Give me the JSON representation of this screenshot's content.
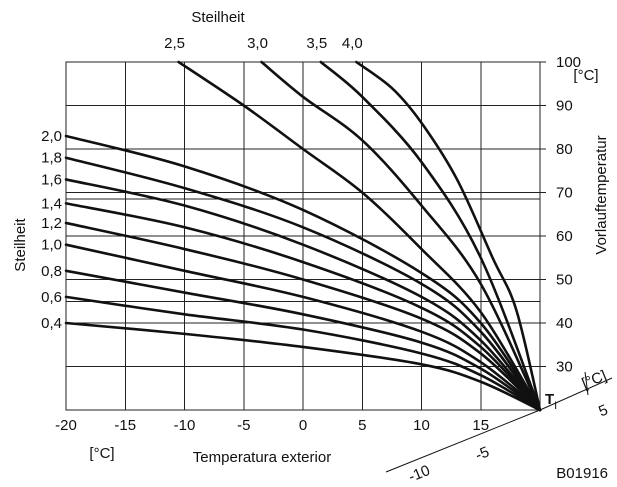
{
  "chart_data": {
    "type": "line",
    "title": "",
    "top_label": "Steilheit",
    "top_ticks": [
      "2,5",
      "3,0",
      "3,5",
      "4,0"
    ],
    "left_label": "Steilheit",
    "left_ticks": [
      "2,0",
      "1,8",
      "1,6",
      "1,4",
      "1,2",
      "1,0",
      "0,8",
      "0,6",
      "0,4"
    ],
    "xlabel": "Temperatura exterior",
    "x_unit": "[°C]",
    "x_ticks": [
      "-20",
      "-15",
      "-10",
      "-5",
      "0",
      "5",
      "10",
      "15"
    ],
    "xlim": [
      -20,
      20
    ],
    "ylabel": "Vorlauftemperatur",
    "y_unit": "[°C]",
    "y_ticks": [
      "100",
      "90",
      "80",
      "70",
      "60",
      "50",
      "40",
      "30"
    ],
    "ylim": [
      20,
      100
    ],
    "room_label": "T",
    "room_label_sub": "I",
    "room_unit": "[°C]",
    "room_ticks": [
      "5",
      "-5",
      "-10"
    ],
    "figure_code": "B01916",
    "series": [
      {
        "name": "0,4",
        "points": [
          [
            -20,
            40
          ],
          [
            -10,
            37.5
          ],
          [
            0,
            34.5
          ],
          [
            10,
            30.5
          ],
          [
            15,
            26.5
          ],
          [
            20,
            20
          ]
        ]
      },
      {
        "name": "0,6",
        "points": [
          [
            -20,
            46
          ],
          [
            -10,
            42
          ],
          [
            0,
            38.5
          ],
          [
            10,
            33
          ],
          [
            15,
            28
          ],
          [
            20,
            20
          ]
        ]
      },
      {
        "name": "0,8",
        "points": [
          [
            -20,
            52
          ],
          [
            -10,
            47
          ],
          [
            0,
            42
          ],
          [
            10,
            35.5
          ],
          [
            15,
            29.5
          ],
          [
            20,
            20
          ]
        ]
      },
      {
        "name": "1,0",
        "points": [
          [
            -20,
            58
          ],
          [
            -10,
            52
          ],
          [
            0,
            46
          ],
          [
            10,
            38
          ],
          [
            15,
            31
          ],
          [
            20,
            20
          ]
        ]
      },
      {
        "name": "1,2",
        "points": [
          [
            -20,
            63
          ],
          [
            -10,
            57
          ],
          [
            0,
            50
          ],
          [
            10,
            41
          ],
          [
            15,
            33
          ],
          [
            20,
            20
          ]
        ]
      },
      {
        "name": "1,4",
        "points": [
          [
            -20,
            67.5
          ],
          [
            -10,
            62
          ],
          [
            0,
            54
          ],
          [
            10,
            43.5
          ],
          [
            15,
            34.5
          ],
          [
            20,
            20
          ]
        ]
      },
      {
        "name": "1,6",
        "points": [
          [
            -20,
            73
          ],
          [
            -10,
            67
          ],
          [
            0,
            58
          ],
          [
            10,
            46
          ],
          [
            15,
            36
          ],
          [
            20,
            20
          ]
        ]
      },
      {
        "name": "1,8",
        "points": [
          [
            -20,
            78
          ],
          [
            -10,
            71
          ],
          [
            0,
            62
          ],
          [
            10,
            49
          ],
          [
            15,
            38
          ],
          [
            20,
            20
          ]
        ]
      },
      {
        "name": "2,0",
        "points": [
          [
            -20,
            83
          ],
          [
            -10,
            76
          ],
          [
            0,
            66
          ],
          [
            10,
            51.5
          ],
          [
            15,
            40
          ],
          [
            20,
            20
          ]
        ]
      },
      {
        "name": "2,5",
        "points": [
          [
            -10.5,
            100
          ],
          [
            -5,
            90
          ],
          [
            0,
            80
          ],
          [
            5,
            70
          ],
          [
            10,
            57
          ],
          [
            15,
            42.5
          ],
          [
            20,
            20
          ]
        ]
      },
      {
        "name": "3,0",
        "points": [
          [
            -3.5,
            100
          ],
          [
            0,
            92
          ],
          [
            5,
            82
          ],
          [
            10,
            67
          ],
          [
            15,
            49
          ],
          [
            20,
            20
          ]
        ]
      },
      {
        "name": "3,5",
        "points": [
          [
            1.5,
            100
          ],
          [
            5,
            92
          ],
          [
            10,
            77
          ],
          [
            15,
            55
          ],
          [
            20,
            20
          ]
        ]
      },
      {
        "name": "4,0",
        "points": [
          [
            4.5,
            100
          ],
          [
            7.5,
            94
          ],
          [
            10,
            86
          ],
          [
            13,
            73
          ],
          [
            16,
            55
          ],
          [
            18,
            43
          ],
          [
            20,
            20
          ]
        ]
      }
    ]
  }
}
